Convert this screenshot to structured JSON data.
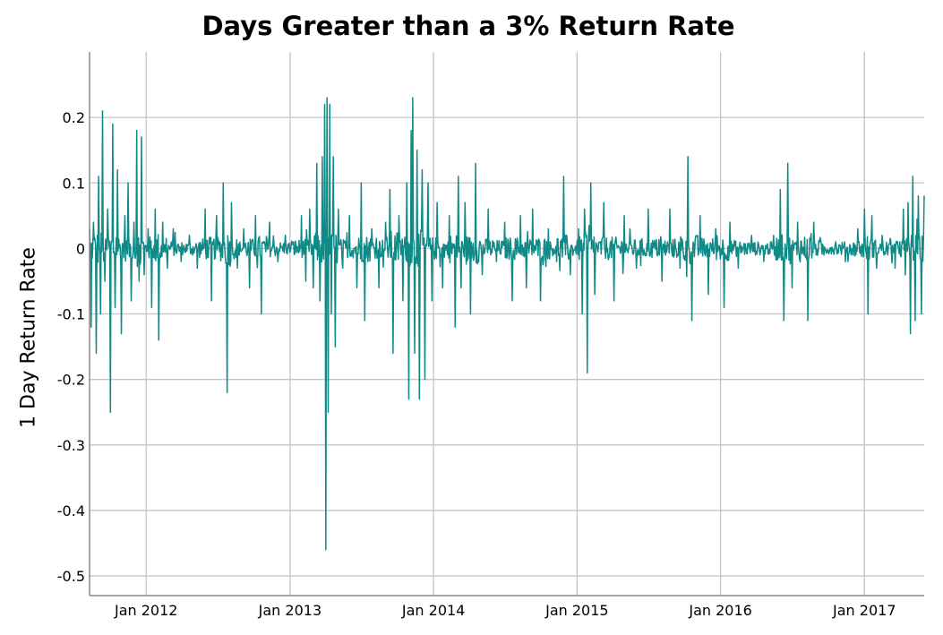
{
  "chart_data": {
    "type": "line",
    "title": "Days Greater than a 3% Return Rate",
    "xlabel": "",
    "ylabel": "1 Day Return Rate",
    "x_range": [
      "2011-08-10",
      "2017-06-02"
    ],
    "ylim": [
      -0.53,
      0.3
    ],
    "grid": true,
    "color": "#0f8a87",
    "x_ticks": [
      {
        "date": "2012-01-01",
        "label": "Jan 2012"
      },
      {
        "date": "2013-01-01",
        "label": "Jan 2013"
      },
      {
        "date": "2014-01-01",
        "label": "Jan 2014"
      },
      {
        "date": "2015-01-01",
        "label": "Jan 2015"
      },
      {
        "date": "2016-01-01",
        "label": "Jan 2016"
      },
      {
        "date": "2017-01-01",
        "label": "Jan 2017"
      }
    ],
    "y_ticks": [
      {
        "value": 0.2,
        "label": "0.2"
      },
      {
        "value": 0.1,
        "label": "0.1"
      },
      {
        "value": 0,
        "label": "0"
      },
      {
        "value": -0.1,
        "label": "-0.1"
      },
      {
        "value": -0.2,
        "label": "-0.2"
      },
      {
        "value": -0.3,
        "label": "-0.3"
      },
      {
        "value": -0.4,
        "label": "-0.4"
      },
      {
        "value": -0.5,
        "label": "-0.5"
      }
    ],
    "series": [
      {
        "values": [
          [
            "2011-08-10",
            0.03
          ],
          [
            "2011-08-14",
            -0.12
          ],
          [
            "2011-08-20",
            0.04
          ],
          [
            "2011-08-27",
            -0.16
          ],
          [
            "2011-09-02",
            0.11
          ],
          [
            "2011-09-07",
            -0.1
          ],
          [
            "2011-09-12",
            0.21
          ],
          [
            "2011-09-18",
            -0.05
          ],
          [
            "2011-09-25",
            0.06
          ],
          [
            "2011-10-02",
            -0.25
          ],
          [
            "2011-10-08",
            0.19
          ],
          [
            "2011-10-14",
            -0.09
          ],
          [
            "2011-10-20",
            0.12
          ],
          [
            "2011-10-30",
            -0.13
          ],
          [
            "2011-11-08",
            0.05
          ],
          [
            "2011-11-16",
            0.1
          ],
          [
            "2011-11-24",
            -0.08
          ],
          [
            "2011-12-01",
            0.04
          ],
          [
            "2011-12-08",
            0.18
          ],
          [
            "2011-12-14",
            -0.05
          ],
          [
            "2011-12-20",
            0.17
          ],
          [
            "2011-12-27",
            -0.04
          ],
          [
            "2012-01-06",
            0.03
          ],
          [
            "2012-01-15",
            -0.09
          ],
          [
            "2012-01-24",
            0.06
          ],
          [
            "2012-02-02",
            -0.14
          ],
          [
            "2012-02-12",
            0.04
          ],
          [
            "2012-02-24",
            -0.03
          ],
          [
            "2012-03-10",
            0.03
          ],
          [
            "2012-03-30",
            -0.02
          ],
          [
            "2012-04-20",
            0.02
          ],
          [
            "2012-05-10",
            -0.03
          ],
          [
            "2012-05-30",
            0.06
          ],
          [
            "2012-06-15",
            -0.08
          ],
          [
            "2012-06-28",
            0.05
          ],
          [
            "2012-07-15",
            0.1
          ],
          [
            "2012-07-25",
            -0.22
          ],
          [
            "2012-08-05",
            0.07
          ],
          [
            "2012-08-20",
            -0.03
          ],
          [
            "2012-09-05",
            0.03
          ],
          [
            "2012-09-20",
            -0.06
          ],
          [
            "2012-10-05",
            0.05
          ],
          [
            "2012-10-20",
            -0.1
          ],
          [
            "2012-11-10",
            0.04
          ],
          [
            "2012-12-01",
            -0.02
          ],
          [
            "2012-12-20",
            0.02
          ],
          [
            "2013-01-10",
            0.01
          ],
          [
            "2013-01-30",
            0.05
          ],
          [
            "2013-02-10",
            -0.05
          ],
          [
            "2013-02-20",
            0.06
          ],
          [
            "2013-03-01",
            -0.06
          ],
          [
            "2013-03-10",
            0.13
          ],
          [
            "2013-03-18",
            -0.08
          ],
          [
            "2013-03-24",
            0.14
          ],
          [
            "2013-03-30",
            0.22
          ],
          [
            "2013-04-02",
            -0.46
          ],
          [
            "2013-04-05",
            0.23
          ],
          [
            "2013-04-08",
            -0.25
          ],
          [
            "2013-04-12",
            0.22
          ],
          [
            "2013-04-16",
            -0.1
          ],
          [
            "2013-04-21",
            0.14
          ],
          [
            "2013-04-26",
            -0.15
          ],
          [
            "2013-05-04",
            0.06
          ],
          [
            "2013-05-15",
            -0.03
          ],
          [
            "2013-06-01",
            0.05
          ],
          [
            "2013-06-20",
            -0.06
          ],
          [
            "2013-07-01",
            0.1
          ],
          [
            "2013-07-10",
            -0.11
          ],
          [
            "2013-07-28",
            0.03
          ],
          [
            "2013-08-15",
            -0.06
          ],
          [
            "2013-09-01",
            0.04
          ],
          [
            "2013-09-12",
            0.09
          ],
          [
            "2013-09-20",
            -0.16
          ],
          [
            "2013-10-05",
            0.05
          ],
          [
            "2013-10-15",
            -0.08
          ],
          [
            "2013-10-25",
            0.1
          ],
          [
            "2013-10-30",
            -0.23
          ],
          [
            "2013-11-05",
            0.18
          ],
          [
            "2013-11-09",
            0.23
          ],
          [
            "2013-11-14",
            -0.16
          ],
          [
            "2013-11-20",
            0.15
          ],
          [
            "2013-11-26",
            -0.23
          ],
          [
            "2013-12-03",
            0.12
          ],
          [
            "2013-12-10",
            -0.2
          ],
          [
            "2013-12-18",
            0.1
          ],
          [
            "2013-12-28",
            -0.08
          ],
          [
            "2014-01-10",
            0.07
          ],
          [
            "2014-01-24",
            -0.06
          ],
          [
            "2014-02-10",
            0.05
          ],
          [
            "2014-02-25",
            -0.12
          ],
          [
            "2014-03-05",
            0.11
          ],
          [
            "2014-03-12",
            -0.06
          ],
          [
            "2014-03-22",
            0.07
          ],
          [
            "2014-04-05",
            -0.1
          ],
          [
            "2014-04-18",
            0.13
          ],
          [
            "2014-05-05",
            -0.04
          ],
          [
            "2014-05-20",
            0.06
          ],
          [
            "2014-06-10",
            -0.02
          ],
          [
            "2014-07-01",
            0.04
          ],
          [
            "2014-07-20",
            -0.08
          ],
          [
            "2014-08-10",
            0.05
          ],
          [
            "2014-08-25",
            -0.06
          ],
          [
            "2014-09-10",
            0.06
          ],
          [
            "2014-09-30",
            -0.08
          ],
          [
            "2014-10-20",
            0.03
          ],
          [
            "2014-11-10",
            -0.02
          ],
          [
            "2014-11-28",
            0.11
          ],
          [
            "2014-12-15",
            -0.04
          ],
          [
            "2015-01-05",
            0.03
          ],
          [
            "2015-01-14",
            -0.1
          ],
          [
            "2015-01-20",
            0.06
          ],
          [
            "2015-01-27",
            -0.19
          ],
          [
            "2015-02-05",
            0.1
          ],
          [
            "2015-02-15",
            -0.07
          ],
          [
            "2015-03-10",
            0.07
          ],
          [
            "2015-04-05",
            -0.08
          ],
          [
            "2015-05-01",
            0.05
          ],
          [
            "2015-06-01",
            -0.03
          ],
          [
            "2015-07-01",
            0.06
          ],
          [
            "2015-08-05",
            -0.05
          ],
          [
            "2015-08-25",
            0.06
          ],
          [
            "2015-09-20",
            -0.03
          ],
          [
            "2015-10-10",
            0.14
          ],
          [
            "2015-10-20",
            -0.11
          ],
          [
            "2015-11-10",
            0.05
          ],
          [
            "2015-12-01",
            -0.07
          ],
          [
            "2015-12-20",
            0.03
          ],
          [
            "2016-01-10",
            -0.09
          ],
          [
            "2016-01-25",
            0.04
          ],
          [
            "2016-02-15",
            -0.03
          ],
          [
            "2016-03-20",
            0.02
          ],
          [
            "2016-04-20",
            -0.02
          ],
          [
            "2016-05-15",
            0.02
          ],
          [
            "2016-06-01",
            0.09
          ],
          [
            "2016-06-10",
            -0.11
          ],
          [
            "2016-06-20",
            0.13
          ],
          [
            "2016-07-01",
            -0.06
          ],
          [
            "2016-07-15",
            0.04
          ],
          [
            "2016-08-10",
            -0.11
          ],
          [
            "2016-08-25",
            0.04
          ],
          [
            "2016-09-20",
            -0.01
          ],
          [
            "2016-10-20",
            0.01
          ],
          [
            "2016-11-20",
            -0.02
          ],
          [
            "2016-12-15",
            0.03
          ],
          [
            "2017-01-01",
            0.06
          ],
          [
            "2017-01-10",
            -0.1
          ],
          [
            "2017-01-20",
            0.05
          ],
          [
            "2017-02-01",
            -0.03
          ],
          [
            "2017-02-15",
            0.02
          ],
          [
            "2017-02-20",
            -0.01
          ],
          [
            "2017-03-20",
            -0.03
          ],
          [
            "2017-04-01",
            0.01
          ],
          [
            "2017-04-10",
            0.06
          ],
          [
            "2017-04-15",
            -0.04
          ],
          [
            "2017-04-22",
            0.07
          ],
          [
            "2017-04-28",
            -0.13
          ],
          [
            "2017-05-04",
            0.11
          ],
          [
            "2017-05-10",
            -0.11
          ],
          [
            "2017-05-18",
            0.08
          ],
          [
            "2017-05-26",
            -0.1
          ],
          [
            "2017-06-02",
            0.08
          ]
        ]
      }
    ]
  }
}
